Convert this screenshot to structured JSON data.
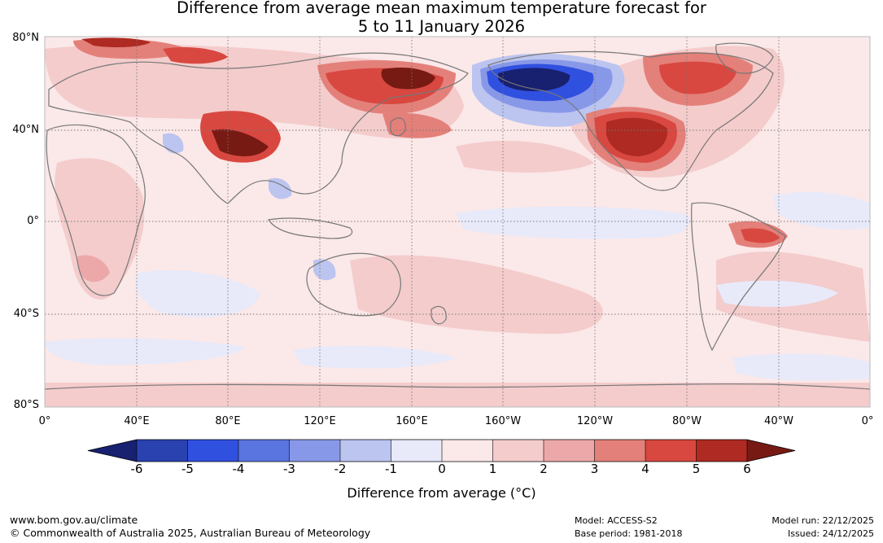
{
  "title": {
    "line1": "Difference from average mean maximum temperature forecast for",
    "line2": "5 to 11 January 2026"
  },
  "lat_labels": [
    "80°N",
    "40°N",
    "0°",
    "40°S",
    "80°S"
  ],
  "lon_labels": [
    "0°",
    "40°E",
    "80°E",
    "120°E",
    "160°E",
    "160°W",
    "120°W",
    "80°W",
    "40°W",
    "0°"
  ],
  "colorbar": {
    "ticks": [
      "-6",
      "-5",
      "-4",
      "-3",
      "-2",
      "-1",
      "0",
      "1",
      "2",
      "3",
      "4",
      "5",
      "6"
    ],
    "label": "Difference from average ($^\\circ$C)",
    "label_display": "Difference from average (°C)",
    "colors": [
      "#182070",
      "#2a42b0",
      "#3050e0",
      "#5a74e0",
      "#8898e8",
      "#bcc4f0",
      "#e8eafa",
      "#fbe8e8",
      "#f4cccc",
      "#eca8a8",
      "#e4807a",
      "#d84840",
      "#ae2a22",
      "#781a14"
    ]
  },
  "footer": {
    "url": "www.bom.gov.au/climate",
    "copyright": "© Commonwealth of Australia 2025, Australian Bureau of Meteorology",
    "model": "Model: ACCESS-S2",
    "base_period": "Base period: 1981-2018",
    "model_run": "Model run: 22/12/2025",
    "issued": "Issued: 24/12/2025"
  }
}
